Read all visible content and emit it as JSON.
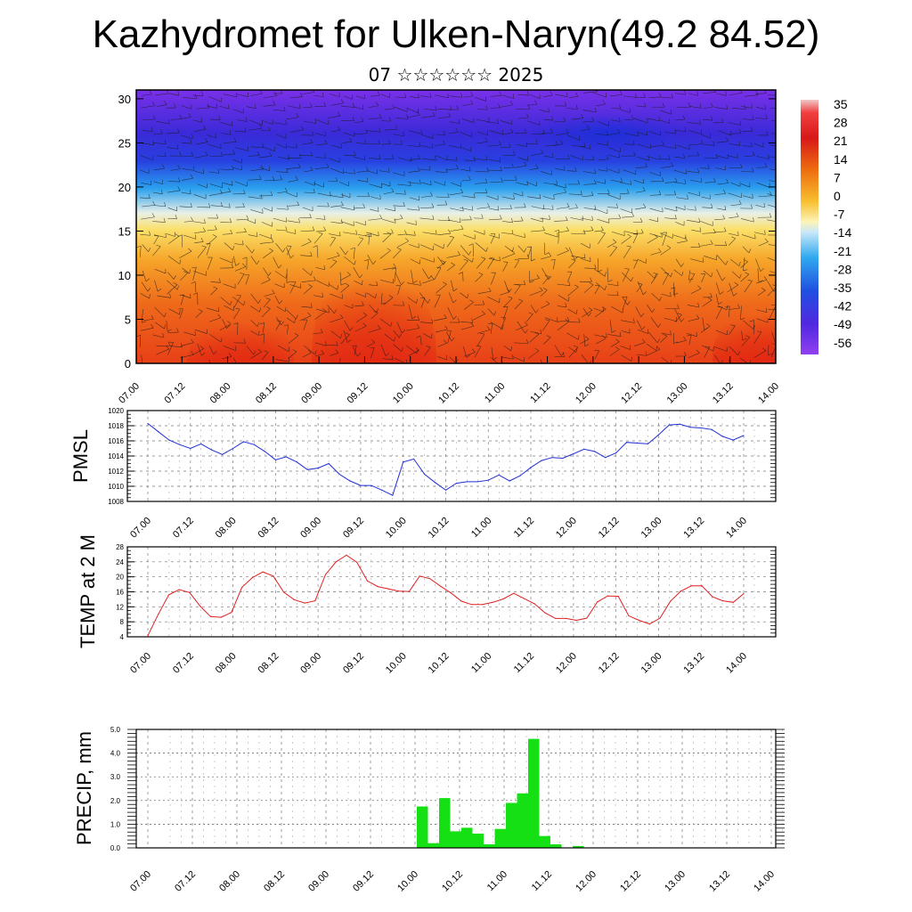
{
  "header": {
    "title": "Kazhydromet for Ulken-Naryn(49.2 84.52)",
    "subtitle": "07 ☆☆☆☆☆☆ 2025"
  },
  "chart_data": [
    {
      "type": "heatmap",
      "title": "",
      "y_ticks": [
        "0",
        "5",
        "10",
        "15",
        "20",
        "25",
        "30"
      ],
      "ylim": [
        0,
        31
      ],
      "x_ticks": [
        "07.00",
        "07.12",
        "08.00",
        "08.12",
        "09.00",
        "09.12",
        "10.00",
        "10.12",
        "11.00",
        "11.12",
        "12.00",
        "12.12",
        "13.00",
        "13.12",
        "14.00"
      ],
      "colorbar_labels": [
        "35",
        "28",
        "21",
        "14",
        "7",
        "0",
        "-7",
        "-14",
        "-21",
        "-28",
        "-35",
        "-42",
        "-49",
        "-56"
      ],
      "colorbar_range": [
        -60,
        38
      ],
      "overlay": "wind barbs",
      "colors": {
        "warm": "#e0201a",
        "mid": "#f5a623",
        "neutral": "#fdf6c3",
        "cool": "#3aa0e0",
        "cold": "#4a20d8"
      }
    },
    {
      "type": "line",
      "ylabel": "PMSL",
      "y_ticks": [
        "1008",
        "1010",
        "1012",
        "1014",
        "1016",
        "1018",
        "1020"
      ],
      "ylim": [
        1008,
        1020
      ],
      "x_ticks": [
        "07.00",
        "07.12",
        "08.00",
        "08.12",
        "09.00",
        "09.12",
        "10.00",
        "10.12",
        "11.00",
        "11.12",
        "12.00",
        "12.12",
        "13.00",
        "13.12",
        "14.00"
      ],
      "series": [
        {
          "color": "#1f2fd6",
          "values": [
            1018.3,
            1017.2,
            1016.1,
            1015.5,
            1015.0,
            1015.6,
            1014.8,
            1014.2,
            1015.0,
            1015.9,
            1015.5,
            1014.6,
            1013.5,
            1013.9,
            1013.2,
            1012.2,
            1012.4,
            1013.0,
            1011.6,
            1010.7,
            1010.1,
            1010.1,
            1009.5,
            1008.8,
            1013.2,
            1013.6,
            1011.6,
            1010.5,
            1009.5,
            1010.4,
            1010.6,
            1010.6,
            1010.8,
            1011.5,
            1010.7,
            1011.4,
            1012.5,
            1013.4,
            1013.8,
            1013.7,
            1014.3,
            1014.9,
            1014.6,
            1013.8,
            1014.4,
            1015.8,
            1015.7,
            1015.6,
            1016.8,
            1018.1,
            1018.2,
            1017.8,
            1017.7,
            1017.5,
            1016.6,
            1016.1,
            1016.7
          ]
        }
      ]
    },
    {
      "type": "line",
      "ylabel": "TEMP at 2 M",
      "y_ticks": [
        "4",
        "8",
        "12",
        "16",
        "20",
        "24",
        "28"
      ],
      "ylim": [
        4,
        28
      ],
      "x_ticks": [
        "07.00",
        "07.12",
        "08.00",
        "08.12",
        "09.00",
        "09.12",
        "10.00",
        "10.12",
        "11.00",
        "11.12",
        "12.00",
        "12.12",
        "13.00",
        "13.12",
        "14.00"
      ],
      "series": [
        {
          "color": "#e02020",
          "values": [
            4.3,
            10.0,
            15.2,
            16.6,
            15.8,
            12.2,
            9.4,
            9.2,
            10.5,
            17.2,
            19.8,
            21.3,
            20.2,
            15.9,
            13.9,
            13.0,
            13.6,
            20.6,
            24.0,
            25.8,
            23.9,
            18.9,
            17.4,
            16.8,
            16.2,
            16.1,
            20.2,
            19.5,
            17.5,
            15.7,
            13.5,
            12.6,
            12.6,
            13.2,
            14.1,
            15.6,
            14.2,
            12.8,
            10.4,
            8.9,
            8.9,
            8.4,
            9.0,
            13.3,
            14.9,
            14.8,
            9.6,
            8.4,
            7.4,
            9.0,
            13.5,
            16.2,
            17.6,
            17.6,
            14.7,
            13.6,
            13.2,
            15.5
          ]
        }
      ]
    },
    {
      "type": "bar",
      "ylabel": "PRECIP, mm",
      "y_ticks": [
        "0.0",
        "1.0",
        "2.0",
        "3.0",
        "4.0",
        "5.0"
      ],
      "ylim": [
        0,
        5
      ],
      "x_ticks": [
        "07.00",
        "07.12",
        "08.00",
        "08.12",
        "09.00",
        "09.12",
        "10.00",
        "10.12",
        "11.00",
        "11.12",
        "12.00",
        "12.12",
        "13.00",
        "13.12",
        "14.00"
      ],
      "series": [
        {
          "color": "#14e014",
          "values": [
            0,
            0,
            0,
            0,
            0,
            0,
            0,
            0,
            0,
            0,
            0,
            0,
            0,
            0,
            0,
            0,
            0,
            0,
            0,
            0,
            0,
            0,
            0,
            0,
            0,
            1.75,
            0.2,
            2.1,
            0.7,
            0.85,
            0.6,
            0.15,
            0.8,
            1.9,
            2.3,
            4.6,
            0.5,
            0.15,
            0,
            0.08,
            0,
            0,
            0,
            0,
            0,
            0,
            0,
            0,
            0,
            0,
            0,
            0,
            0,
            0,
            0,
            0,
            0
          ]
        }
      ]
    }
  ]
}
